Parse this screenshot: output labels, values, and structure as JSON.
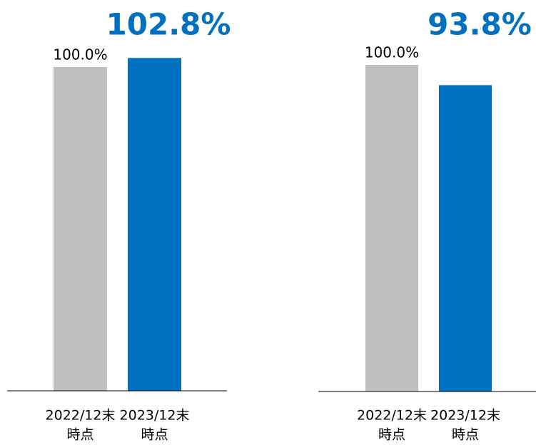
{
  "chart_data": [
    {
      "type": "bar",
      "categories": [
        [
          "2022/12末",
          "時点"
        ],
        [
          "2023/12末",
          "時点"
        ]
      ],
      "values": [
        100.0,
        102.8
      ],
      "value_labels": [
        "100.0%",
        "102.8%"
      ],
      "colors": [
        "#bfbfbf",
        "#0070c0"
      ],
      "ylim": [
        0,
        110
      ]
    },
    {
      "type": "bar",
      "categories": [
        [
          "2022/12末",
          "時点"
        ],
        [
          "2023/12末",
          "時点"
        ]
      ],
      "values": [
        100.0,
        93.8
      ],
      "value_labels": [
        "100.0%",
        "93.8%"
      ],
      "colors": [
        "#bfbfbf",
        "#0070c0"
      ],
      "ylim": [
        0,
        110
      ]
    }
  ]
}
